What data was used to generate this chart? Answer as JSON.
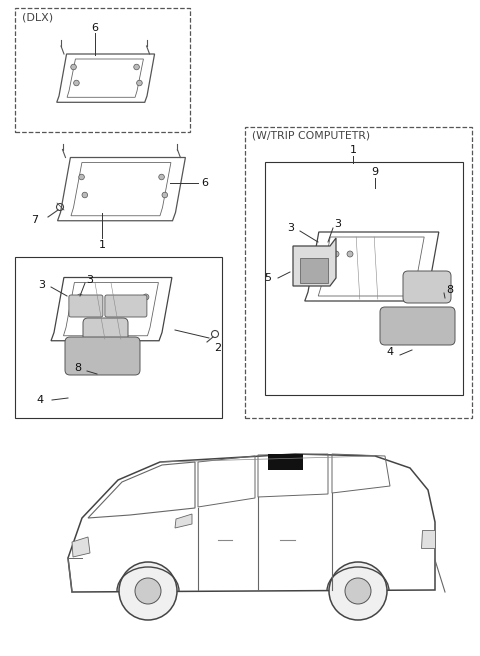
{
  "bg_color": "#ffffff",
  "line_color": "#333333",
  "title_dlx": "(DLX)",
  "title_trip": "(W/TRIP COMPUTETR)",
  "fig_width": 4.8,
  "fig_height": 6.56,
  "dpi": 100,
  "lc": "#444444",
  "lc2": "#666666",
  "lc3": "#888888"
}
